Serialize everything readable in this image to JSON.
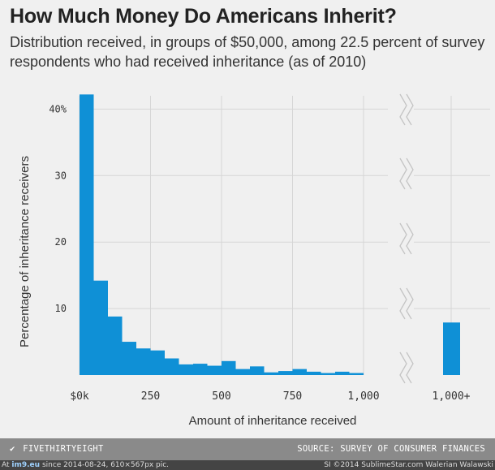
{
  "colors": {
    "bar": "#0f90d6",
    "grid": "#d6d6d6",
    "background": "#f0f0f0",
    "footer": "#8a8a8a"
  },
  "chart_data": {
    "type": "bar",
    "title": "How Much Money Do Americans Inherit?",
    "subtitle": "Distribution received, in groups of $50,000, among 22.5 percent of survey respondents who had received inheritance (as of 2010)",
    "xlabel": "Amount of inheritance received",
    "ylabel": "Percentage of inheritance receivers",
    "ylim": [
      0,
      42
    ],
    "xlim": [
      0,
      1000
    ],
    "y_ticks": [
      {
        "value": 10,
        "label": "10"
      },
      {
        "value": 20,
        "label": "20"
      },
      {
        "value": 30,
        "label": "30"
      },
      {
        "value": 40,
        "label": "40%"
      }
    ],
    "x_ticks": [
      {
        "value": 0,
        "label": "$0k"
      },
      {
        "value": 250,
        "label": "250"
      },
      {
        "value": 500,
        "label": "500"
      },
      {
        "value": 750,
        "label": "750"
      },
      {
        "value": 1000,
        "label": "1,000"
      }
    ],
    "bin_width": 50,
    "bins": [
      {
        "start": 0,
        "value": 42.2
      },
      {
        "start": 50,
        "value": 14.2
      },
      {
        "start": 100,
        "value": 8.8
      },
      {
        "start": 150,
        "value": 5.0
      },
      {
        "start": 200,
        "value": 4.0
      },
      {
        "start": 250,
        "value": 3.7
      },
      {
        "start": 300,
        "value": 2.5
      },
      {
        "start": 350,
        "value": 1.6
      },
      {
        "start": 400,
        "value": 1.7
      },
      {
        "start": 450,
        "value": 1.4
      },
      {
        "start": 500,
        "value": 2.1
      },
      {
        "start": 550,
        "value": 0.9
      },
      {
        "start": 600,
        "value": 1.3
      },
      {
        "start": 650,
        "value": 0.4
      },
      {
        "start": 700,
        "value": 0.6
      },
      {
        "start": 750,
        "value": 0.9
      },
      {
        "start": 800,
        "value": 0.5
      },
      {
        "start": 850,
        "value": 0.3
      },
      {
        "start": 900,
        "value": 0.5
      },
      {
        "start": 950,
        "value": 0.3
      }
    ],
    "outlier": {
      "label": "1,000+",
      "value": 7.9
    },
    "grid": true
  },
  "footer": {
    "brand": "FIVETHIRTYEIGHT",
    "logo": "✔",
    "source": "SOURCE: SURVEY OF CONSUMER FINANCES"
  },
  "watermark": {
    "prefix": "At",
    "site": "im9.eu",
    "middle": "since 2014-08-24, 610×567px pic.",
    "right": "SI ©2014 SublimeStar.com Walerian Walawski"
  }
}
